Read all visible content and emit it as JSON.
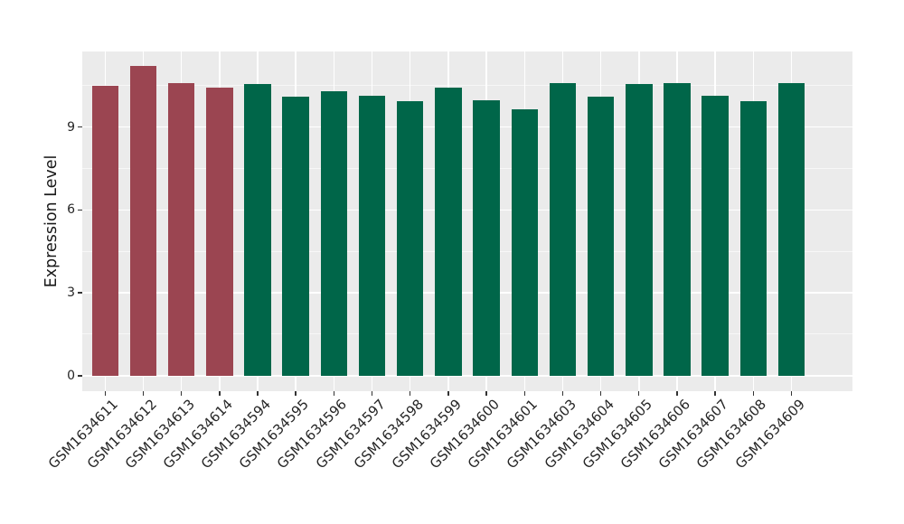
{
  "chart_data": {
    "type": "bar",
    "title": "",
    "xlabel": "",
    "ylabel": "Expression Level",
    "categories": [
      "GSM1634611",
      "GSM1634612",
      "GSM1634613",
      "GSM1634614",
      "GSM1634594",
      "GSM1634595",
      "GSM1634596",
      "GSM1634597",
      "GSM1634598",
      "GSM1634599",
      "GSM1634600",
      "GSM1634601",
      "GSM1634603",
      "GSM1634604",
      "GSM1634605",
      "GSM1634606",
      "GSM1634607",
      "GSM1634608",
      "GSM1634609"
    ],
    "values": [
      10.49,
      11.2,
      10.58,
      10.42,
      10.56,
      10.11,
      10.3,
      10.13,
      9.93,
      10.42,
      9.97,
      9.64,
      10.6,
      10.09,
      10.56,
      10.58,
      10.13,
      9.94,
      10.6
    ],
    "groups": [
      "highlight",
      "highlight",
      "highlight",
      "highlight",
      "normal",
      "normal",
      "normal",
      "normal",
      "normal",
      "normal",
      "normal",
      "normal",
      "normal",
      "normal",
      "normal",
      "normal",
      "normal",
      "normal",
      "normal"
    ],
    "group_colors": {
      "highlight": "#9B4551",
      "normal": "#006649"
    },
    "yticks": [
      0,
      3,
      6,
      9
    ],
    "ytick_step": 3,
    "ylim": [
      -0.56,
      11.73
    ],
    "bar_rel_width": 0.7,
    "grid": "on",
    "legend_position": "none",
    "colors": {
      "panel_background": "#EBEBEB",
      "grid_major": "#FFFFFF",
      "axis_text": "#262626",
      "tick_mark": "#333333",
      "figure_background": "#FFFFFF"
    }
  }
}
